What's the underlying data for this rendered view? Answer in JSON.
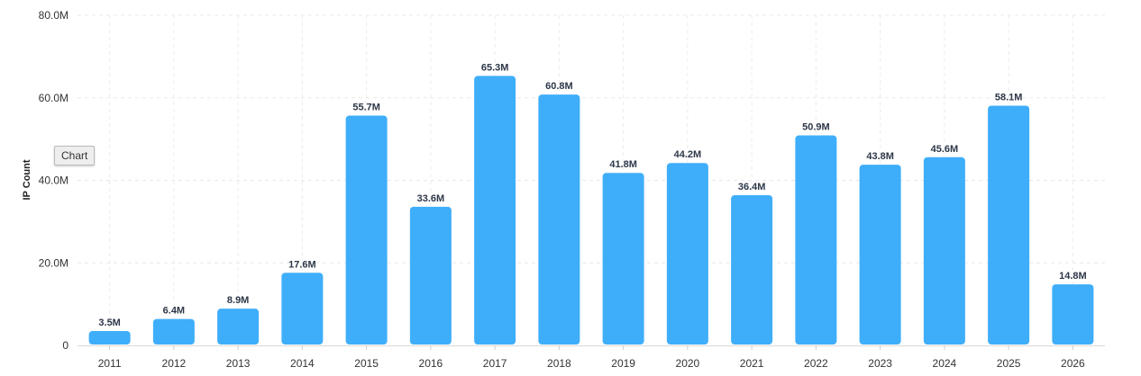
{
  "chart_data": {
    "type": "bar",
    "title": "",
    "xlabel": "",
    "ylabel": "IP Count",
    "ylim": [
      0,
      80000000
    ],
    "y_ticks": [
      "0",
      "20.0M",
      "40.0M",
      "60.0M",
      "80.0M"
    ],
    "grid": true,
    "categories": [
      "2011",
      "2012",
      "2013",
      "2014",
      "2015",
      "2016",
      "2017",
      "2018",
      "2019",
      "2020",
      "2021",
      "2022",
      "2023",
      "2024",
      "2025",
      "2026"
    ],
    "values": [
      3500000,
      6400000,
      8900000,
      17600000,
      55700000,
      33600000,
      65300000,
      60800000,
      41800000,
      44200000,
      36400000,
      50900000,
      43800000,
      45600000,
      58100000,
      14800000
    ],
    "data_labels": [
      "3.5M",
      "6.4M",
      "8.9M",
      "17.6M",
      "55.7M",
      "33.6M",
      "65.3M",
      "60.8M",
      "41.8M",
      "44.2M",
      "36.4M",
      "50.9M",
      "43.8M",
      "45.6M",
      "58.1M",
      "14.8M"
    ],
    "bar_color": "#3eaefa"
  },
  "tooltip": {
    "label": "Chart"
  }
}
